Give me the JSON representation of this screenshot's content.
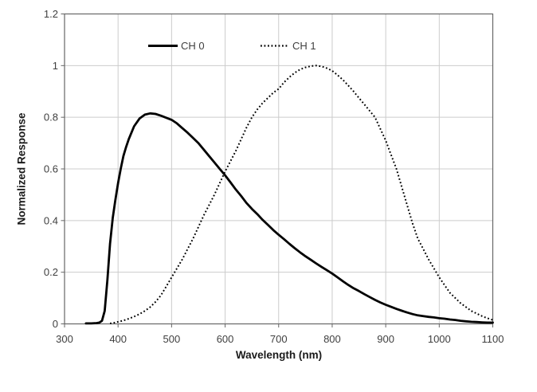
{
  "chart_data": {
    "type": "line",
    "title": "",
    "xlabel": "Wavelength (nm)",
    "ylabel": "Normalized Response",
    "xlim": [
      300,
      1100
    ],
    "ylim": [
      0,
      1.2
    ],
    "x_ticks": [
      300,
      400,
      500,
      600,
      700,
      800,
      900,
      1000,
      1100
    ],
    "x_tick_labels": [
      "300",
      "400",
      "500",
      "600",
      "700",
      "800",
      "900",
      "1000",
      "1100"
    ],
    "y_ticks": [
      0,
      0.2,
      0.4,
      0.6,
      0.8,
      1.0,
      1.2
    ],
    "y_tick_labels": [
      "0",
      "0.2",
      "0.4",
      "0.6",
      "0.8",
      "1",
      "1.2"
    ],
    "grid": true,
    "legend_position": "top-inside",
    "series": [
      {
        "name": "CH 0",
        "style": "solid",
        "color": "#000000",
        "points": [
          [
            340,
            0.002
          ],
          [
            350,
            0.002
          ],
          [
            360,
            0.003
          ],
          [
            365,
            0.005
          ],
          [
            370,
            0.012
          ],
          [
            375,
            0.05
          ],
          [
            380,
            0.17
          ],
          [
            385,
            0.31
          ],
          [
            390,
            0.41
          ],
          [
            395,
            0.48
          ],
          [
            400,
            0.545
          ],
          [
            405,
            0.6
          ],
          [
            410,
            0.65
          ],
          [
            415,
            0.685
          ],
          [
            420,
            0.715
          ],
          [
            430,
            0.765
          ],
          [
            440,
            0.795
          ],
          [
            450,
            0.81
          ],
          [
            460,
            0.815
          ],
          [
            470,
            0.813
          ],
          [
            480,
            0.806
          ],
          [
            490,
            0.798
          ],
          [
            500,
            0.79
          ],
          [
            510,
            0.776
          ],
          [
            520,
            0.758
          ],
          [
            530,
            0.74
          ],
          [
            540,
            0.72
          ],
          [
            550,
            0.7
          ],
          [
            560,
            0.675
          ],
          [
            570,
            0.65
          ],
          [
            580,
            0.625
          ],
          [
            590,
            0.6
          ],
          [
            600,
            0.575
          ],
          [
            610,
            0.548
          ],
          [
            620,
            0.52
          ],
          [
            630,
            0.495
          ],
          [
            640,
            0.468
          ],
          [
            650,
            0.445
          ],
          [
            660,
            0.425
          ],
          [
            670,
            0.403
          ],
          [
            680,
            0.383
          ],
          [
            690,
            0.363
          ],
          [
            700,
            0.345
          ],
          [
            710,
            0.328
          ],
          [
            720,
            0.31
          ],
          [
            730,
            0.293
          ],
          [
            740,
            0.277
          ],
          [
            750,
            0.262
          ],
          [
            760,
            0.248
          ],
          [
            770,
            0.234
          ],
          [
            780,
            0.221
          ],
          [
            790,
            0.208
          ],
          [
            800,
            0.195
          ],
          [
            810,
            0.18
          ],
          [
            820,
            0.165
          ],
          [
            830,
            0.151
          ],
          [
            840,
            0.138
          ],
          [
            850,
            0.127
          ],
          [
            860,
            0.115
          ],
          [
            870,
            0.104
          ],
          [
            880,
            0.093
          ],
          [
            890,
            0.083
          ],
          [
            900,
            0.074
          ],
          [
            910,
            0.066
          ],
          [
            920,
            0.058
          ],
          [
            930,
            0.051
          ],
          [
            940,
            0.044
          ],
          [
            950,
            0.038
          ],
          [
            960,
            0.033
          ],
          [
            970,
            0.03
          ],
          [
            980,
            0.027
          ],
          [
            990,
            0.025
          ],
          [
            1000,
            0.022
          ],
          [
            1010,
            0.02
          ],
          [
            1020,
            0.017
          ],
          [
            1030,
            0.015
          ],
          [
            1040,
            0.012
          ],
          [
            1050,
            0.01
          ],
          [
            1060,
            0.008
          ],
          [
            1070,
            0.007
          ],
          [
            1080,
            0.006
          ],
          [
            1090,
            0.005
          ],
          [
            1100,
            0.005
          ]
        ]
      },
      {
        "name": "CH 1",
        "style": "dotted",
        "color": "#000000",
        "points": [
          [
            385,
            0.002
          ],
          [
            390,
            0.003
          ],
          [
            400,
            0.008
          ],
          [
            410,
            0.013
          ],
          [
            420,
            0.02
          ],
          [
            430,
            0.028
          ],
          [
            440,
            0.038
          ],
          [
            450,
            0.05
          ],
          [
            460,
            0.065
          ],
          [
            470,
            0.085
          ],
          [
            480,
            0.11
          ],
          [
            490,
            0.145
          ],
          [
            500,
            0.18
          ],
          [
            510,
            0.215
          ],
          [
            520,
            0.25
          ],
          [
            530,
            0.29
          ],
          [
            540,
            0.33
          ],
          [
            550,
            0.375
          ],
          [
            560,
            0.42
          ],
          [
            570,
            0.46
          ],
          [
            580,
            0.5
          ],
          [
            590,
            0.545
          ],
          [
            600,
            0.59
          ],
          [
            610,
            0.63
          ],
          [
            620,
            0.67
          ],
          [
            630,
            0.715
          ],
          [
            640,
            0.76
          ],
          [
            650,
            0.8
          ],
          [
            660,
            0.83
          ],
          [
            670,
            0.855
          ],
          [
            680,
            0.875
          ],
          [
            690,
            0.895
          ],
          [
            700,
            0.91
          ],
          [
            710,
            0.935
          ],
          [
            720,
            0.955
          ],
          [
            730,
            0.972
          ],
          [
            740,
            0.985
          ],
          [
            750,
            0.993
          ],
          [
            760,
            0.998
          ],
          [
            770,
            1.0
          ],
          [
            780,
            0.997
          ],
          [
            790,
            0.99
          ],
          [
            800,
            0.98
          ],
          [
            810,
            0.963
          ],
          [
            820,
            0.945
          ],
          [
            830,
            0.923
          ],
          [
            840,
            0.9
          ],
          [
            850,
            0.875
          ],
          [
            860,
            0.85
          ],
          [
            870,
            0.825
          ],
          [
            880,
            0.8
          ],
          [
            890,
            0.755
          ],
          [
            900,
            0.71
          ],
          [
            910,
            0.655
          ],
          [
            920,
            0.6
          ],
          [
            930,
            0.53
          ],
          [
            940,
            0.46
          ],
          [
            950,
            0.39
          ],
          [
            960,
            0.33
          ],
          [
            970,
            0.29
          ],
          [
            980,
            0.25
          ],
          [
            990,
            0.215
          ],
          [
            1000,
            0.18
          ],
          [
            1010,
            0.15
          ],
          [
            1020,
            0.12
          ],
          [
            1030,
            0.1
          ],
          [
            1040,
            0.08
          ],
          [
            1050,
            0.065
          ],
          [
            1060,
            0.05
          ],
          [
            1070,
            0.04
          ],
          [
            1080,
            0.03
          ],
          [
            1090,
            0.022
          ],
          [
            1100,
            0.015
          ]
        ]
      }
    ]
  },
  "colors": {
    "background": "#ffffff",
    "gridline": "#cccccc",
    "plot_border": "#666666",
    "axis": "#666666",
    "tick": "#666666",
    "tick_label": "#3f3f3f",
    "axis_title": "#1a1a1a",
    "curve": "#000000"
  }
}
